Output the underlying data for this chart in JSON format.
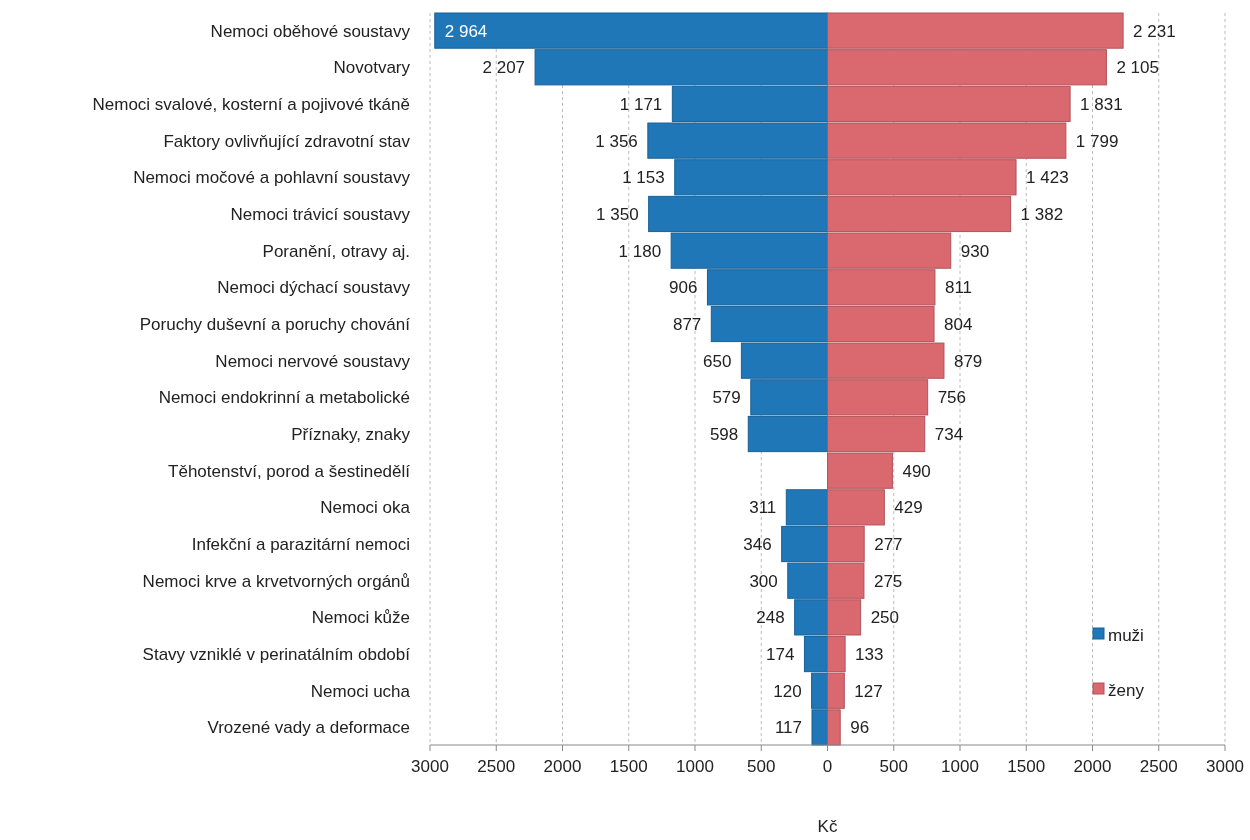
{
  "chart_data": {
    "type": "bar",
    "orientation": "horizontal",
    "xlabel": "Kč",
    "categories": [
      "Nemoci oběhové soustavy",
      "Novotvary",
      "Nemoci svalové, kosterní a pojivové tkáně",
      "Faktory ovlivňující zdravotní stav",
      "Nemoci močové a pohlavní soustavy",
      "Nemoci trávicí soustavy",
      "Poranění, otravy aj.",
      "Nemoci dýchací soustavy",
      "Poruchy duševní a poruchy chování",
      "Nemoci nervové soustavy",
      "Nemoci endokrinní a metabolické",
      "Příznaky, znaky",
      "Těhotenství, porod a šestinedělí",
      "Nemoci oka",
      "Infekční a parazitární nemoci",
      "Nemoci krve a krvetvorných orgánů",
      "Nemoci kůže",
      "Stavy vzniklé v perinatálním období",
      "Nemoci ucha",
      "Vrozené vady a deformace"
    ],
    "series": [
      {
        "name": "muži",
        "color": "#1f77b8",
        "values": [
          2964,
          2207,
          1171,
          1356,
          1153,
          1350,
          1180,
          906,
          877,
          650,
          579,
          598,
          null,
          311,
          346,
          300,
          248,
          174,
          120,
          117
        ],
        "base": [
          -2964,
          -2207,
          -1171,
          -1356,
          -1153,
          -1350,
          -1180,
          -906,
          -877,
          -650,
          -579,
          -598,
          null,
          -311,
          -346,
          -300,
          -248,
          -174,
          -120,
          -117
        ],
        "value_labels": [
          "2 964",
          "2 207",
          "1 171",
          "1 356",
          "1 153",
          "1 350",
          "1 180",
          "906",
          "877",
          "650",
          "579",
          "598",
          null,
          "311",
          "346",
          "300",
          "248",
          "174",
          "120",
          "117"
        ]
      },
      {
        "name": "ženy",
        "color": "#d9686f",
        "values": [
          2231,
          2105,
          1831,
          1799,
          1423,
          1382,
          930,
          811,
          804,
          879,
          756,
          734,
          490,
          429,
          277,
          275,
          250,
          133,
          127,
          96
        ],
        "value_labels": [
          "2 231",
          "2 105",
          "1 831",
          "1 799",
          "1 423",
          "1 382",
          "930",
          "811",
          "804",
          "879",
          "756",
          "734",
          "490",
          "429",
          "277",
          "275",
          "250",
          "133",
          "127",
          "96"
        ]
      }
    ],
    "xlim": [
      -3000,
      3000
    ],
    "xticks": [
      {
        "value": -3000,
        "label": "3000"
      },
      {
        "value": -2500,
        "label": "2500"
      },
      {
        "value": -2000,
        "label": "2000"
      },
      {
        "value": -1500,
        "label": "1500"
      },
      {
        "value": -1000,
        "label": "1000"
      },
      {
        "value": -500,
        "label": "500"
      },
      0,
      500,
      1000,
      1500,
      2000,
      2500,
      3000
    ],
    "grid": "x",
    "legend": "bottom right"
  }
}
